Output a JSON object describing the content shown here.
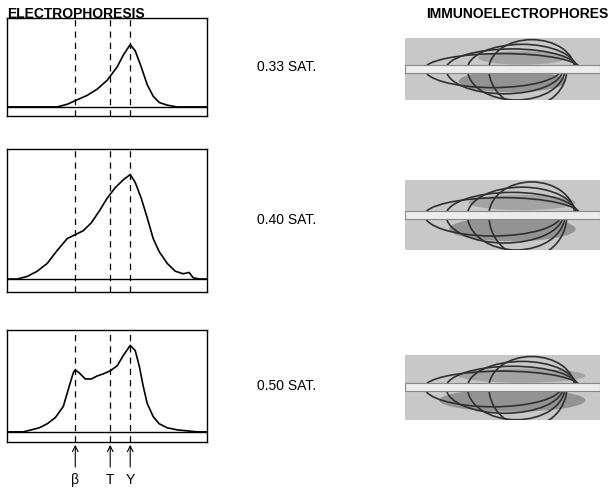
{
  "headers": {
    "left": "ELECTROPHORESIS",
    "right": "IMMUNOELECTROPHORES"
  },
  "reference_lines": [
    {
      "value": 34,
      "label": "β"
    },
    {
      "value": 51.5,
      "label": "T"
    },
    {
      "value": 61.5,
      "label": "Y"
    }
  ],
  "chart_data": [
    {
      "type": "line",
      "title": "0.33 SAT.",
      "color": "#000000",
      "tick_labels": false,
      "xlim": [
        0,
        100
      ],
      "ylim": [
        -10,
        100
      ],
      "x": [
        0,
        25,
        30,
        35,
        40,
        45,
        50,
        55,
        58,
        61.5,
        64,
        67,
        70,
        73,
        76,
        80,
        85,
        100
      ],
      "values": [
        0,
        0,
        3,
        8,
        13,
        20,
        30,
        45,
        58,
        70,
        63,
        45,
        25,
        12,
        5,
        2,
        0,
        0
      ]
    },
    {
      "type": "line",
      "title": "0.40 SAT.",
      "color": "#000000",
      "tick_labels": false,
      "xlim": [
        0,
        100
      ],
      "ylim": [
        -10,
        100
      ],
      "x": [
        0,
        5,
        10,
        15,
        20,
        25,
        30,
        34,
        38,
        42,
        46,
        50,
        54,
        58,
        61.5,
        64,
        67,
        70,
        73,
        76,
        80,
        84,
        88,
        91,
        93,
        96,
        100
      ],
      "values": [
        0,
        0,
        2,
        6,
        12,
        22,
        31,
        34,
        37,
        43,
        52,
        62,
        70,
        76,
        80,
        74,
        62,
        47,
        31,
        21,
        12,
        6,
        4,
        5,
        1,
        0,
        0
      ]
    },
    {
      "type": "line",
      "title": "0.50 SAT.",
      "color": "#000000",
      "tick_labels": false,
      "xlim": [
        0,
        100
      ],
      "ylim": [
        -10,
        100
      ],
      "x": [
        0,
        8,
        12,
        16,
        20,
        24,
        28,
        31,
        33,
        34,
        36,
        39,
        42,
        45,
        48,
        51.5,
        55,
        58,
        61.5,
        64,
        66,
        68,
        70,
        73,
        76,
        80,
        85,
        90,
        95,
        100
      ],
      "values": [
        0,
        0,
        2,
        4,
        8,
        14,
        25,
        45,
        58,
        61,
        58,
        52,
        52,
        55,
        57,
        60,
        65,
        75,
        85,
        80,
        65,
        45,
        28,
        15,
        8,
        4,
        2,
        1,
        0,
        0
      ]
    }
  ]
}
